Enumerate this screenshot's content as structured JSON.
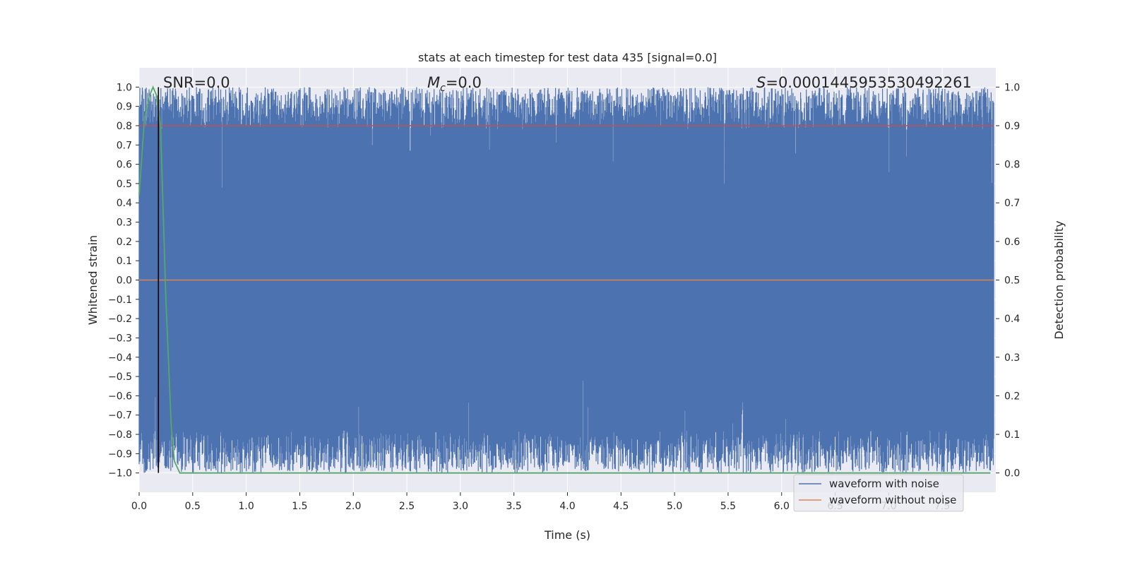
{
  "chart_data": {
    "type": "line",
    "title": "stats at each timestep for test data 435 [signal=0.0]",
    "xlabel": "Time (s)",
    "ylabel": "Whitened strain",
    "y2label": "Detection probability",
    "xlim": [
      0.0,
      8.0
    ],
    "ylim": [
      -1.1,
      1.1
    ],
    "y2lim": [
      -0.05,
      1.05
    ],
    "xticks": [
      0.0,
      0.5,
      1.0,
      1.5,
      2.0,
      2.5,
      3.0,
      3.5,
      4.0,
      4.5,
      5.0,
      5.5,
      6.0,
      6.5,
      7.0,
      7.5
    ],
    "xtick_labels": [
      "0.0",
      "0.5",
      "1.0",
      "1.5",
      "2.0",
      "2.5",
      "3.0",
      "3.5",
      "4.0",
      "4.5",
      "5.0",
      "5.5",
      "6.0",
      "6.5",
      "7.0",
      "7.5"
    ],
    "yticks": [
      1.0,
      0.9,
      0.8,
      0.7,
      0.6,
      0.5,
      0.4,
      0.3,
      0.2,
      0.1,
      0.0,
      -0.1,
      -0.2,
      -0.3,
      -0.4,
      -0.5,
      -0.6,
      -0.7,
      -0.8,
      -0.9,
      -1.0
    ],
    "ytick_labels": [
      "1.0",
      "0.9",
      "0.8",
      "0.7",
      "0.6",
      "0.5",
      "0.4",
      "0.3",
      "0.2",
      "0.1",
      "0.0",
      "−0.1",
      "−0.2",
      "−0.3",
      "−0.4",
      "−0.5",
      "−0.6",
      "−0.7",
      "−0.8",
      "−0.9",
      "−1.0"
    ],
    "y2ticks": [
      1.0,
      0.9,
      0.8,
      0.7,
      0.6,
      0.5,
      0.4,
      0.3,
      0.2,
      0.1,
      0.0
    ],
    "y2tick_labels": [
      "1.0",
      "0.9",
      "0.8",
      "0.7",
      "0.6",
      "0.5",
      "0.4",
      "0.3",
      "0.2",
      "0.1",
      "0.0"
    ],
    "annotations": {
      "snr": "SNR=0.0",
      "mc_symbol": "M",
      "mc_sub": "c",
      "mc_value": "=0.0",
      "s_symbol": "S",
      "s_value": "=0.0001445953530492261"
    },
    "series": [
      {
        "name": "waveform with noise",
        "color": "#4c72b0",
        "description": "dense noise spanning approx -1.0 to 1.0 over 0–8 s"
      },
      {
        "name": "waveform without noise",
        "color": "#dd8452",
        "values_constant": 0.0
      },
      {
        "name": "detection probability",
        "color": "#55a868",
        "axis": "right",
        "x": [
          0.0,
          0.05,
          0.1,
          0.13,
          0.16,
          0.2,
          0.25,
          0.3,
          0.33,
          0.38,
          0.5,
          1.0,
          2.0,
          3.0,
          4.0,
          5.0,
          6.0,
          7.0,
          7.95
        ],
        "values": [
          0.72,
          0.92,
          0.98,
          1.0,
          0.98,
          0.9,
          0.45,
          0.12,
          0.03,
          0.0,
          0.0,
          0.0,
          0.0,
          0.0,
          0.0,
          0.0,
          0.0,
          0.0,
          0.0
        ]
      },
      {
        "name": "threshold",
        "color": "#c44e52",
        "axis": "right",
        "values_constant": 0.9
      },
      {
        "name": "marker",
        "color": "#000000",
        "x_constant": 0.18
      }
    ],
    "legend": {
      "placement": "lower-right",
      "entries": [
        "waveform with noise",
        "waveform without noise"
      ]
    },
    "grid": true
  }
}
